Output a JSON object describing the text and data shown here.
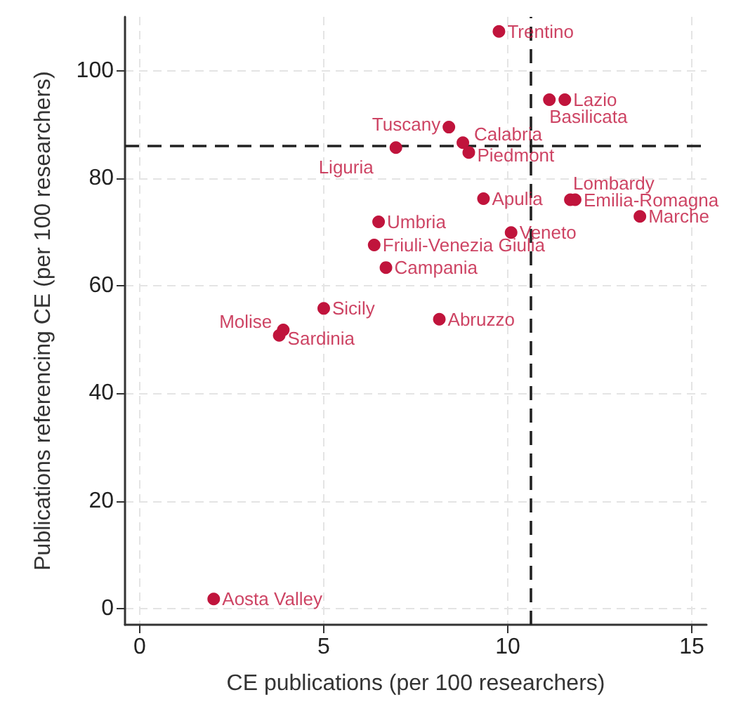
{
  "chart_data": {
    "type": "scatter",
    "xlabel": "CE publications (per 100 researchers)",
    "ylabel": "Publications referencing CE (per 100 researchers)",
    "x": [
      9.76,
      11.55,
      11.13,
      8.4,
      8.78,
      8.94,
      6.96,
      9.34,
      11.7,
      11.83,
      13.59,
      6.49,
      10.09,
      6.37,
      6.69,
      5.0,
      8.14,
      3.9,
      3.79,
      2.01
    ],
    "series": [
      {
        "color": "#c0143c",
        "values": [
          107.3,
          94.6,
          94.6,
          89.5,
          86.6,
          84.8,
          85.7,
          76.2,
          76.0,
          76.0,
          72.9,
          71.9,
          69.9,
          67.6,
          63.4,
          55.8,
          53.8,
          51.8,
          50.8,
          1.8
        ]
      }
    ],
    "annotations": [
      {
        "text": "Trentino",
        "x": 9.76,
        "y": 107.3
      },
      {
        "text": "Lazio",
        "x": 11.55,
        "y": 94.6
      },
      {
        "text": "Basilicata",
        "x": 11.13,
        "y": 94.6
      },
      {
        "text": "Tuscany",
        "x": 8.4,
        "y": 89.5
      },
      {
        "text": "Calabria",
        "x": 8.78,
        "y": 86.6
      },
      {
        "text": "Piedmont",
        "x": 8.94,
        "y": 84.8
      },
      {
        "text": "Liguria",
        "x": 6.96,
        "y": 85.7
      },
      {
        "text": "Apulia",
        "x": 9.34,
        "y": 76.2
      },
      {
        "text": "Lombardy",
        "x": 11.7,
        "y": 76.0
      },
      {
        "text": "Emilia-Romagna",
        "x": 11.83,
        "y": 76.0
      },
      {
        "text": "Marche",
        "x": 13.59,
        "y": 72.9
      },
      {
        "text": "Umbria",
        "x": 6.49,
        "y": 71.9
      },
      {
        "text": "Veneto",
        "x": 10.09,
        "y": 69.9
      },
      {
        "text": "Friuli-Venezia Giulia",
        "x": 6.37,
        "y": 67.6
      },
      {
        "text": "Campania",
        "x": 6.69,
        "y": 63.4
      },
      {
        "text": "Sicily",
        "x": 5.0,
        "y": 55.8
      },
      {
        "text": "Abruzzo",
        "x": 8.14,
        "y": 53.8
      },
      {
        "text": "Molise",
        "x": 3.9,
        "y": 51.8
      },
      {
        "text": "Sardinia",
        "x": 3.79,
        "y": 50.8
      },
      {
        "text": "Aosta Valley",
        "x": 2.01,
        "y": 1.8
      }
    ],
    "ref_lines": [
      {
        "axis": "x",
        "value": 10.61,
        "color": "#222222",
        "line_style": "dashed"
      },
      {
        "axis": "y",
        "value": 86.1,
        "color": "#222222",
        "line_style": "dashed"
      }
    ],
    "xlim": [
      -0.4,
      15.4
    ],
    "xticks": [
      0,
      5,
      10,
      15
    ],
    "ylim": [
      -3,
      110
    ],
    "yticks": [
      0,
      20,
      40,
      60,
      80,
      100
    ],
    "grid": true,
    "marker": "circle"
  }
}
